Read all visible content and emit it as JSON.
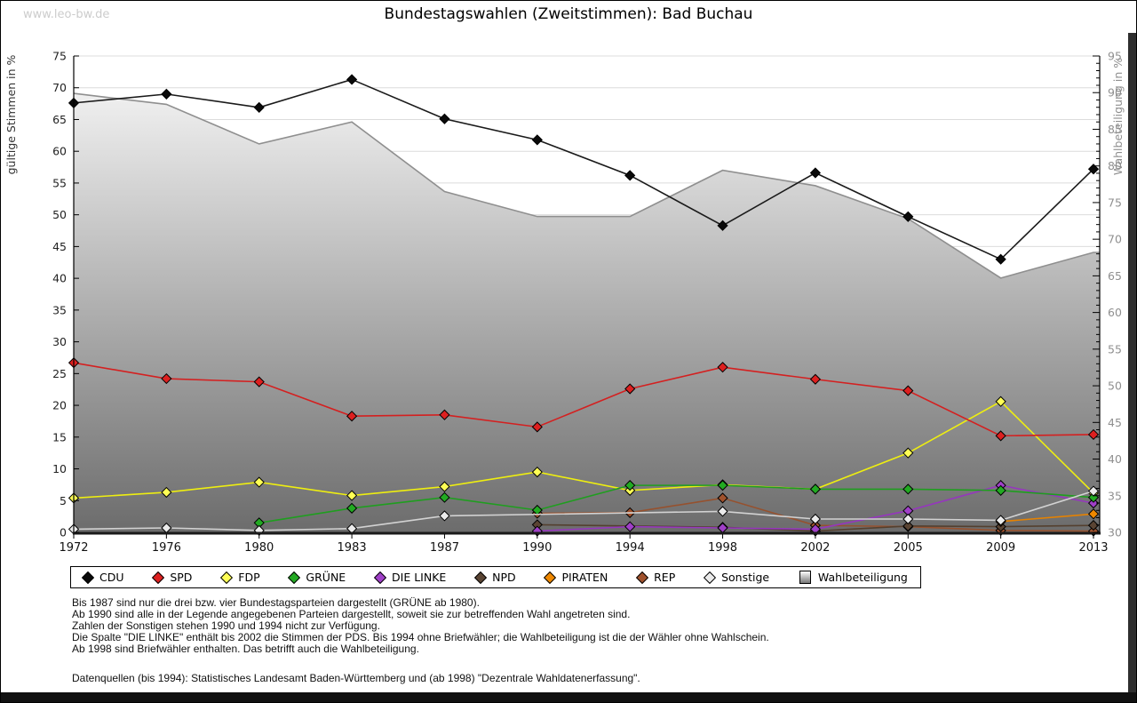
{
  "watermark": "www.leo-bw.de",
  "title": "Bundestagswahlen (Zweitstimmen): Bad Buchau",
  "chart_data": {
    "type": "line",
    "categories": [
      "1972",
      "1976",
      "1980",
      "1983",
      "1987",
      "1990",
      "1994",
      "1998",
      "2002",
      "2005",
      "2009",
      "2013"
    ],
    "left_axis": {
      "label": "gültige Stimmen in %",
      "min": 0,
      "max": 75,
      "step": 5
    },
    "right_axis": {
      "label": "Wahlbeteiligung in %",
      "min": 30,
      "max": 95,
      "step": 5
    },
    "grid": true,
    "legend_position": "bottom",
    "series": [
      {
        "name": "CDU",
        "color": "#0a0a0a",
        "line": "#1a1a1a",
        "axis": "left",
        "kind": "line",
        "values": [
          67.6,
          69.0,
          66.9,
          71.3,
          65.1,
          61.8,
          56.2,
          48.3,
          56.6,
          49.7,
          43.0,
          57.2
        ]
      },
      {
        "name": "SPD",
        "color": "#dd2020",
        "line": "#d42020",
        "axis": "left",
        "kind": "line",
        "values": [
          26.7,
          24.2,
          23.7,
          18.3,
          18.5,
          16.6,
          22.6,
          26.0,
          24.1,
          22.3,
          15.2,
          15.4
        ]
      },
      {
        "name": "FDP",
        "color": "#ffff55",
        "line": "#eeee10",
        "axis": "left",
        "kind": "line",
        "values": [
          5.4,
          6.3,
          7.9,
          5.8,
          7.2,
          9.5,
          6.6,
          7.5,
          6.8,
          12.5,
          20.6,
          6.2
        ]
      },
      {
        "name": "GRÜNE",
        "color": "#22aa22",
        "line": "#1f9e1f",
        "axis": "left",
        "kind": "line",
        "values": [
          null,
          null,
          1.5,
          3.8,
          5.5,
          3.5,
          7.4,
          7.4,
          6.8,
          6.8,
          6.6,
          5.5
        ]
      },
      {
        "name": "DIE LINKE",
        "color": "#a040c8",
        "line": "#9537bd",
        "axis": "left",
        "kind": "line",
        "values": [
          null,
          null,
          null,
          null,
          null,
          0.2,
          0.9,
          0.7,
          0.5,
          3.4,
          7.4,
          4.6
        ]
      },
      {
        "name": "NPD",
        "color": "#5a4433",
        "line": "#54402f",
        "axis": "left",
        "kind": "line",
        "values": [
          null,
          null,
          null,
          null,
          null,
          1.2,
          null,
          0.8,
          0.2,
          1.0,
          0.9,
          1.1
        ]
      },
      {
        "name": "PIRATEN",
        "color": "#ef8800",
        "line": "#e68200",
        "axis": "left",
        "kind": "line",
        "values": [
          null,
          null,
          null,
          null,
          null,
          null,
          null,
          null,
          null,
          null,
          1.7,
          2.9
        ]
      },
      {
        "name": "REP",
        "color": "#a0522d",
        "line": "#96512e",
        "axis": "left",
        "kind": "line",
        "values": [
          null,
          null,
          null,
          null,
          null,
          3.0,
          3.1,
          5.4,
          1.1,
          0.9,
          0.3,
          0.2
        ]
      },
      {
        "name": "Sonstige",
        "color": "#ebebeb",
        "line": "#d2d2d2",
        "axis": "left",
        "kind": "line",
        "values": [
          0.5,
          0.7,
          0.3,
          0.6,
          2.6,
          null,
          null,
          3.3,
          2.1,
          2.1,
          1.9,
          6.5
        ]
      },
      {
        "name": "Wahlbeteiligung",
        "color": "#aaaaaa",
        "line": "#8f8f8f",
        "axis": "right",
        "kind": "area",
        "values": [
          89.9,
          88.4,
          83.0,
          86.0,
          76.5,
          73.1,
          73.1,
          79.4,
          77.3,
          72.8,
          64.7,
          68.2
        ]
      }
    ]
  },
  "footnotes": [
    "Bis 1987 sind nur die drei bzw. vier Bundestagsparteien dargestellt (GRÜNE ab 1980).",
    "Ab 1990 sind alle in der Legende angegebenen Parteien dargestellt, soweit sie zur betreffenden Wahl angetreten sind.",
    "Zahlen der Sonstigen stehen 1990 und 1994 nicht zur Verfügung.",
    "Die Spalte \"DIE LINKE\" enthält bis 2002 die Stimmen der PDS. Bis 1994 ohne Briefwähler; die Wahlbeteiligung ist die der Wähler ohne Wahlschein.",
    "Ab 1998 sind Briefwähler enthalten. Das betrifft auch die Wahlbeteiligung.",
    "",
    "Datenquellen (bis 1994): Statistisches Landesamt Baden-Württemberg und (ab 1998) \"Dezentrale Wahldatenerfassung\"."
  ]
}
